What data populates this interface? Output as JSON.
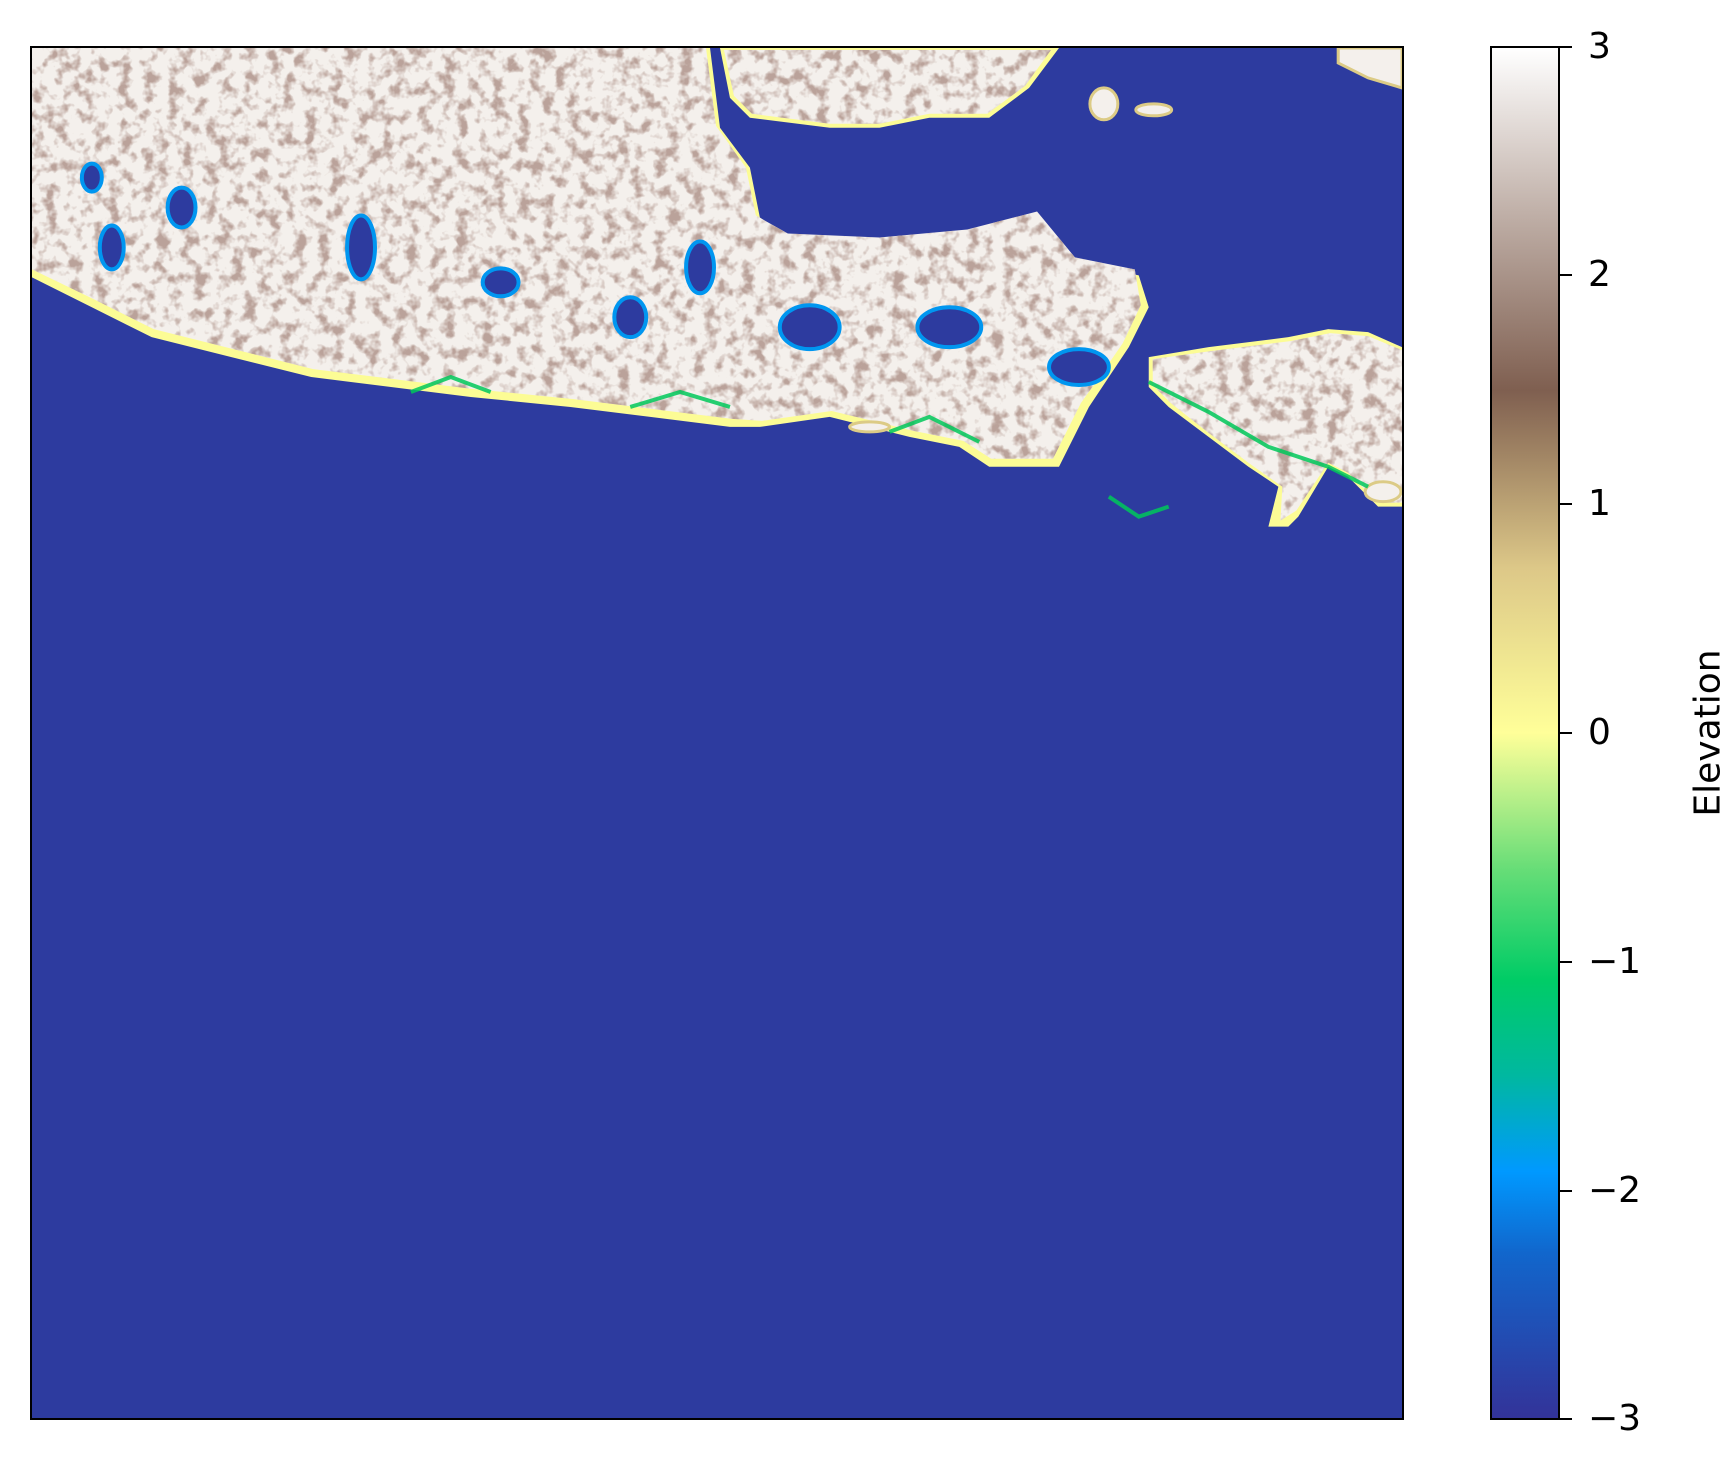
{
  "colorbar": {
    "label": "Elevation",
    "ticks": [
      "3",
      "2",
      "1",
      "0",
      "−1",
      "−2",
      "−3"
    ],
    "range": [
      -3,
      3
    ]
  },
  "colors": {
    "water": "#2d3b9f",
    "land_high": "#f4f0ec",
    "land_mid": "#7e5b52",
    "land_low": "#dccb86",
    "coast_yellow": "#fcfc95",
    "green": "#00c85a",
    "cyan": "#0096f0"
  },
  "chart_data": {
    "type": "heatmap",
    "title": "",
    "xlabel": "",
    "ylabel": "",
    "colormap": "terrain",
    "value_range": [
      -3,
      3
    ],
    "colorbar_label": "Elevation",
    "colorbar_ticks": [
      3,
      2,
      1,
      0,
      -1,
      -2,
      -3
    ],
    "axes_ticks_visible": false
  }
}
